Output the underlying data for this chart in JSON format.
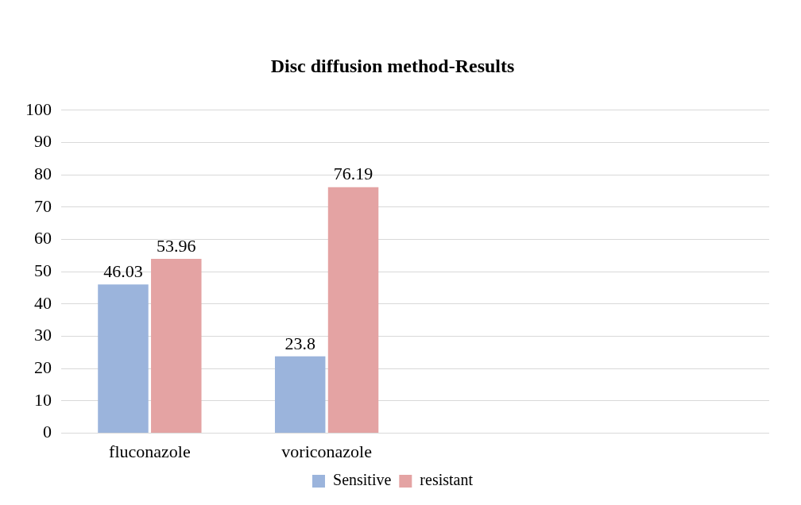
{
  "chart_data": {
    "type": "bar",
    "title": "Disc diffusion method-Results",
    "categories": [
      "fluconazole",
      "voriconazole",
      null,
      null
    ],
    "series": [
      {
        "name": "Sensitive",
        "color": "#9bb4dc",
        "values": [
          46.03,
          23.8,
          null,
          null
        ]
      },
      {
        "name": "resistant",
        "color": "#e4a3a3",
        "values": [
          53.96,
          76.19,
          null,
          null
        ]
      }
    ],
    "ylim": [
      0,
      100
    ],
    "yticks": [
      0,
      10,
      20,
      30,
      40,
      50,
      60,
      70,
      80,
      90,
      100
    ],
    "grid": "y",
    "legend": "bottom",
    "data_labels": true
  }
}
